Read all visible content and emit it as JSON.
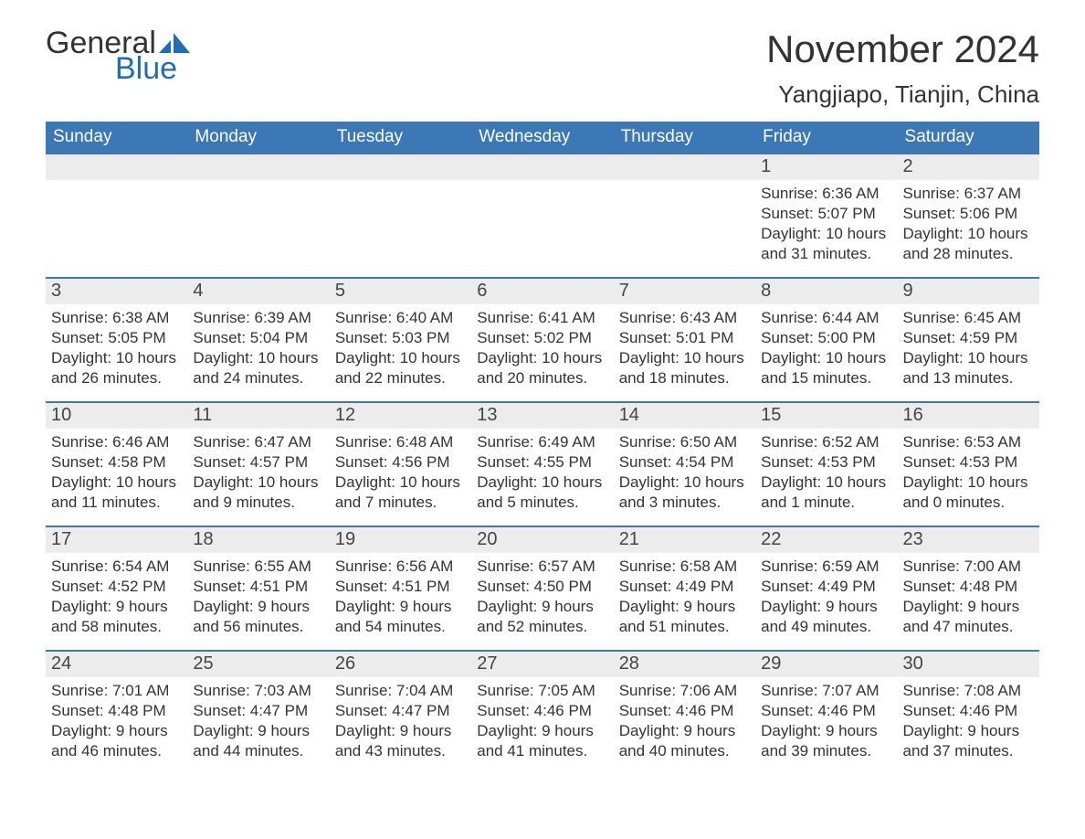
{
  "logo": {
    "word1": "General",
    "word2": "Blue",
    "sail_color": "#1f6db5",
    "text_color": "#333"
  },
  "title": "November 2024",
  "location": "Yangjiapo, Tianjin, China",
  "colors": {
    "header_bg": "#3b78b5",
    "header_text": "#ffffff",
    "daynum_bg": "#ececec",
    "row_border": "#3b78b5",
    "body_text": "#333333",
    "background": "#ffffff"
  },
  "fonts": {
    "title_size": 42,
    "location_size": 26,
    "dayheader_size": 19,
    "daynum_size": 20,
    "body_size": 17
  },
  "day_headers": [
    "Sunday",
    "Monday",
    "Tuesday",
    "Wednesday",
    "Thursday",
    "Friday",
    "Saturday"
  ],
  "weeks": [
    [
      {
        "empty": true
      },
      {
        "empty": true
      },
      {
        "empty": true
      },
      {
        "empty": true
      },
      {
        "empty": true
      },
      {
        "num": "1",
        "sunrise": "Sunrise: 6:36 AM",
        "sunset": "Sunset: 5:07 PM",
        "daylight": "Daylight: 10 hours and 31 minutes."
      },
      {
        "num": "2",
        "sunrise": "Sunrise: 6:37 AM",
        "sunset": "Sunset: 5:06 PM",
        "daylight": "Daylight: 10 hours and 28 minutes."
      }
    ],
    [
      {
        "num": "3",
        "sunrise": "Sunrise: 6:38 AM",
        "sunset": "Sunset: 5:05 PM",
        "daylight": "Daylight: 10 hours and 26 minutes."
      },
      {
        "num": "4",
        "sunrise": "Sunrise: 6:39 AM",
        "sunset": "Sunset: 5:04 PM",
        "daylight": "Daylight: 10 hours and 24 minutes."
      },
      {
        "num": "5",
        "sunrise": "Sunrise: 6:40 AM",
        "sunset": "Sunset: 5:03 PM",
        "daylight": "Daylight: 10 hours and 22 minutes."
      },
      {
        "num": "6",
        "sunrise": "Sunrise: 6:41 AM",
        "sunset": "Sunset: 5:02 PM",
        "daylight": "Daylight: 10 hours and 20 minutes."
      },
      {
        "num": "7",
        "sunrise": "Sunrise: 6:43 AM",
        "sunset": "Sunset: 5:01 PM",
        "daylight": "Daylight: 10 hours and 18 minutes."
      },
      {
        "num": "8",
        "sunrise": "Sunrise: 6:44 AM",
        "sunset": "Sunset: 5:00 PM",
        "daylight": "Daylight: 10 hours and 15 minutes."
      },
      {
        "num": "9",
        "sunrise": "Sunrise: 6:45 AM",
        "sunset": "Sunset: 4:59 PM",
        "daylight": "Daylight: 10 hours and 13 minutes."
      }
    ],
    [
      {
        "num": "10",
        "sunrise": "Sunrise: 6:46 AM",
        "sunset": "Sunset: 4:58 PM",
        "daylight": "Daylight: 10 hours and 11 minutes."
      },
      {
        "num": "11",
        "sunrise": "Sunrise: 6:47 AM",
        "sunset": "Sunset: 4:57 PM",
        "daylight": "Daylight: 10 hours and 9 minutes."
      },
      {
        "num": "12",
        "sunrise": "Sunrise: 6:48 AM",
        "sunset": "Sunset: 4:56 PM",
        "daylight": "Daylight: 10 hours and 7 minutes."
      },
      {
        "num": "13",
        "sunrise": "Sunrise: 6:49 AM",
        "sunset": "Sunset: 4:55 PM",
        "daylight": "Daylight: 10 hours and 5 minutes."
      },
      {
        "num": "14",
        "sunrise": "Sunrise: 6:50 AM",
        "sunset": "Sunset: 4:54 PM",
        "daylight": "Daylight: 10 hours and 3 minutes."
      },
      {
        "num": "15",
        "sunrise": "Sunrise: 6:52 AM",
        "sunset": "Sunset: 4:53 PM",
        "daylight": "Daylight: 10 hours and 1 minute."
      },
      {
        "num": "16",
        "sunrise": "Sunrise: 6:53 AM",
        "sunset": "Sunset: 4:53 PM",
        "daylight": "Daylight: 10 hours and 0 minutes."
      }
    ],
    [
      {
        "num": "17",
        "sunrise": "Sunrise: 6:54 AM",
        "sunset": "Sunset: 4:52 PM",
        "daylight": "Daylight: 9 hours and 58 minutes."
      },
      {
        "num": "18",
        "sunrise": "Sunrise: 6:55 AM",
        "sunset": "Sunset: 4:51 PM",
        "daylight": "Daylight: 9 hours and 56 minutes."
      },
      {
        "num": "19",
        "sunrise": "Sunrise: 6:56 AM",
        "sunset": "Sunset: 4:51 PM",
        "daylight": "Daylight: 9 hours and 54 minutes."
      },
      {
        "num": "20",
        "sunrise": "Sunrise: 6:57 AM",
        "sunset": "Sunset: 4:50 PM",
        "daylight": "Daylight: 9 hours and 52 minutes."
      },
      {
        "num": "21",
        "sunrise": "Sunrise: 6:58 AM",
        "sunset": "Sunset: 4:49 PM",
        "daylight": "Daylight: 9 hours and 51 minutes."
      },
      {
        "num": "22",
        "sunrise": "Sunrise: 6:59 AM",
        "sunset": "Sunset: 4:49 PM",
        "daylight": "Daylight: 9 hours and 49 minutes."
      },
      {
        "num": "23",
        "sunrise": "Sunrise: 7:00 AM",
        "sunset": "Sunset: 4:48 PM",
        "daylight": "Daylight: 9 hours and 47 minutes."
      }
    ],
    [
      {
        "num": "24",
        "sunrise": "Sunrise: 7:01 AM",
        "sunset": "Sunset: 4:48 PM",
        "daylight": "Daylight: 9 hours and 46 minutes."
      },
      {
        "num": "25",
        "sunrise": "Sunrise: 7:03 AM",
        "sunset": "Sunset: 4:47 PM",
        "daylight": "Daylight: 9 hours and 44 minutes."
      },
      {
        "num": "26",
        "sunrise": "Sunrise: 7:04 AM",
        "sunset": "Sunset: 4:47 PM",
        "daylight": "Daylight: 9 hours and 43 minutes."
      },
      {
        "num": "27",
        "sunrise": "Sunrise: 7:05 AM",
        "sunset": "Sunset: 4:46 PM",
        "daylight": "Daylight: 9 hours and 41 minutes."
      },
      {
        "num": "28",
        "sunrise": "Sunrise: 7:06 AM",
        "sunset": "Sunset: 4:46 PM",
        "daylight": "Daylight: 9 hours and 40 minutes."
      },
      {
        "num": "29",
        "sunrise": "Sunrise: 7:07 AM",
        "sunset": "Sunset: 4:46 PM",
        "daylight": "Daylight: 9 hours and 39 minutes."
      },
      {
        "num": "30",
        "sunrise": "Sunrise: 7:08 AM",
        "sunset": "Sunset: 4:46 PM",
        "daylight": "Daylight: 9 hours and 37 minutes."
      }
    ]
  ]
}
